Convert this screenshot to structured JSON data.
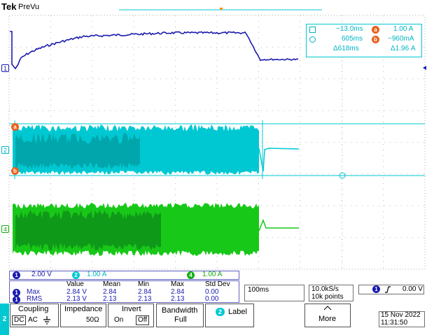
{
  "header": {
    "brand": "Tek",
    "mode": "PreVu"
  },
  "cursor_readout": {
    "t1": "−13.0ms",
    "t2": "605ms",
    "delta_t": "Δ618ms",
    "a_label": "a",
    "a_value": "1.00 A",
    "b_label": "b",
    "b_value": "−960mA",
    "delta_v": "Δ1.96 A"
  },
  "channel_markers": {
    "ch1": "1",
    "ch2": "2",
    "ch4": "4",
    "cursor_a": "a",
    "cursor_b": "b"
  },
  "channel_scales": {
    "ch1_num": "1",
    "ch1_scale": "2.00 V",
    "ch2_num": "2",
    "ch2_scale": "1.00 A",
    "ch4_num": "4",
    "ch4_scale": "1.00 A"
  },
  "measurements": {
    "headers": [
      "Value",
      "Mean",
      "Min",
      "Max",
      "Std Dev"
    ],
    "rows": [
      {
        "ch": "1",
        "name": "Max",
        "values": [
          "2.84 V",
          "2.84",
          "2.84",
          "2.84",
          "0.00"
        ]
      },
      {
        "ch": "1",
        "name": "RMS",
        "values": [
          "2.13 V",
          "2.13",
          "2.13",
          "2.13",
          "0.00"
        ]
      }
    ]
  },
  "timebase": {
    "scale": "100ms",
    "sample_rate": "10.0kS/s",
    "record_length": "10k points"
  },
  "trigger": {
    "channel": "1",
    "slope_icon": "rising-edge",
    "level": "0.00 V"
  },
  "menu": {
    "channel_tab": "2",
    "coupling_label": "Coupling",
    "coupling_dc": "DC",
    "coupling_ac": "AC",
    "impedance_label": "Impedance",
    "impedance_value": "50Ω",
    "invert_label": "Invert",
    "invert_on": "On",
    "invert_off": "Off",
    "bandwidth_label": "Bandwidth",
    "bandwidth_value": "Full",
    "label_channel": "2",
    "label_text": "Label",
    "more_text": "More"
  },
  "datetime": {
    "date": "15 Nov 2022",
    "time": "11:31:50"
  },
  "colors": {
    "ch1": "#1a1ab0",
    "ch2": "#00c8d2",
    "ch4": "#13b013",
    "cursor": "#00c8d2"
  }
}
